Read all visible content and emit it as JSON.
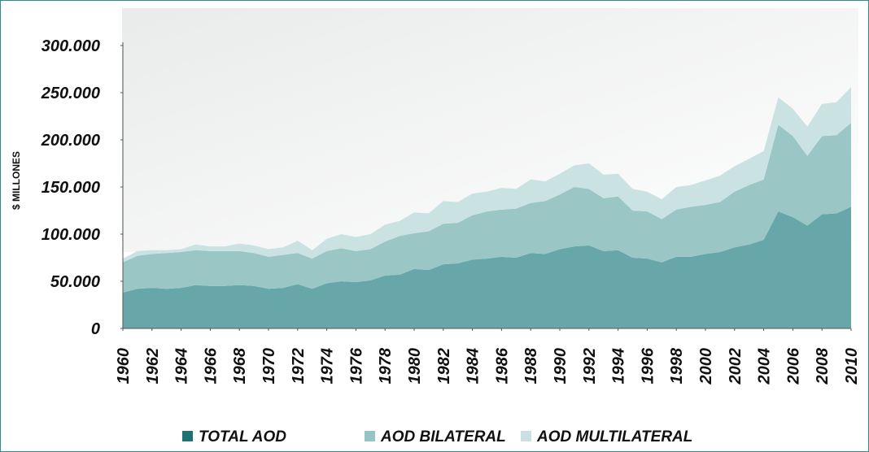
{
  "chart_data": {
    "type": "stacked-area",
    "y_label": "$ MILLONES",
    "x": [
      1960,
      1961,
      1962,
      1963,
      1964,
      1965,
      1966,
      1967,
      1968,
      1969,
      1970,
      1971,
      1972,
      1973,
      1974,
      1975,
      1976,
      1977,
      1978,
      1979,
      1980,
      1981,
      1982,
      1983,
      1984,
      1985,
      1986,
      1987,
      1988,
      1989,
      1990,
      1991,
      1992,
      1993,
      1994,
      1995,
      1996,
      1997,
      1998,
      1999,
      2000,
      2001,
      2002,
      2003,
      2004,
      2005,
      2006,
      2007,
      2008,
      2009,
      2010
    ],
    "xlim": [
      1960,
      2010
    ],
    "xticks": [
      1960,
      1962,
      1964,
      1966,
      1968,
      1970,
      1972,
      1974,
      1976,
      1978,
      1980,
      1982,
      1984,
      1986,
      1988,
      1990,
      1992,
      1994,
      1996,
      1998,
      2000,
      2002,
      2004,
      2006,
      2008,
      2010
    ],
    "ylim": [
      0,
      300000
    ],
    "yticks": [
      0,
      {
        "value": 50000,
        "label": "50.000"
      },
      {
        "value": 100000,
        "label": "100.000"
      },
      {
        "value": 150000,
        "label": "150.000"
      },
      {
        "value": 200000,
        "label": "200.000"
      },
      {
        "value": 250000,
        "label": "250.000"
      },
      {
        "value": 300000,
        "label": "300.000"
      }
    ],
    "legend": "bottom",
    "series": [
      {
        "name": "TOTAL AOD",
        "color": "#5fa2a5",
        "values": [
          38000,
          42000,
          43000,
          42000,
          43000,
          46000,
          45000,
          45000,
          46000,
          45000,
          42000,
          43000,
          47000,
          42000,
          48000,
          50000,
          49000,
          51000,
          56000,
          57000,
          63000,
          62000,
          68000,
          69000,
          73000,
          74000,
          76000,
          75000,
          80000,
          79000,
          84000,
          87000,
          88000,
          82000,
          83000,
          75000,
          74000,
          70000,
          76000,
          76000,
          79000,
          81000,
          86000,
          89000,
          94000,
          124000,
          118000,
          109000,
          121000,
          122000,
          129000
        ]
      },
      {
        "name": "AOD BILATERAL",
        "color": "#96c3c3",
        "values": [
          32000,
          35000,
          36000,
          38000,
          38000,
          37000,
          37000,
          37000,
          36000,
          35000,
          34000,
          35000,
          33000,
          32000,
          34000,
          35000,
          33000,
          33000,
          36000,
          41000,
          38000,
          41000,
          43000,
          43000,
          47000,
          50000,
          50000,
          52000,
          53000,
          56000,
          58000,
          63000,
          60000,
          56000,
          57000,
          50000,
          50000,
          46000,
          50000,
          53000,
          52000,
          53000,
          59000,
          63000,
          64000,
          92000,
          86000,
          74000,
          83000,
          83000,
          89000
        ]
      },
      {
        "name": "AOD MULTILATERAL",
        "color": "#c8e0e1",
        "values": [
          4000,
          5000,
          4000,
          3000,
          3000,
          6000,
          5000,
          5000,
          8000,
          8000,
          8000,
          8000,
          13000,
          9000,
          13000,
          15000,
          15000,
          16000,
          18000,
          16000,
          22000,
          19000,
          24000,
          22000,
          23000,
          21000,
          23000,
          21000,
          25000,
          21000,
          22000,
          23000,
          27000,
          25000,
          24000,
          23000,
          21000,
          21000,
          24000,
          23000,
          26000,
          28000,
          27000,
          28000,
          30000,
          29000,
          29000,
          31000,
          34000,
          35000,
          38000
        ]
      }
    ]
  }
}
